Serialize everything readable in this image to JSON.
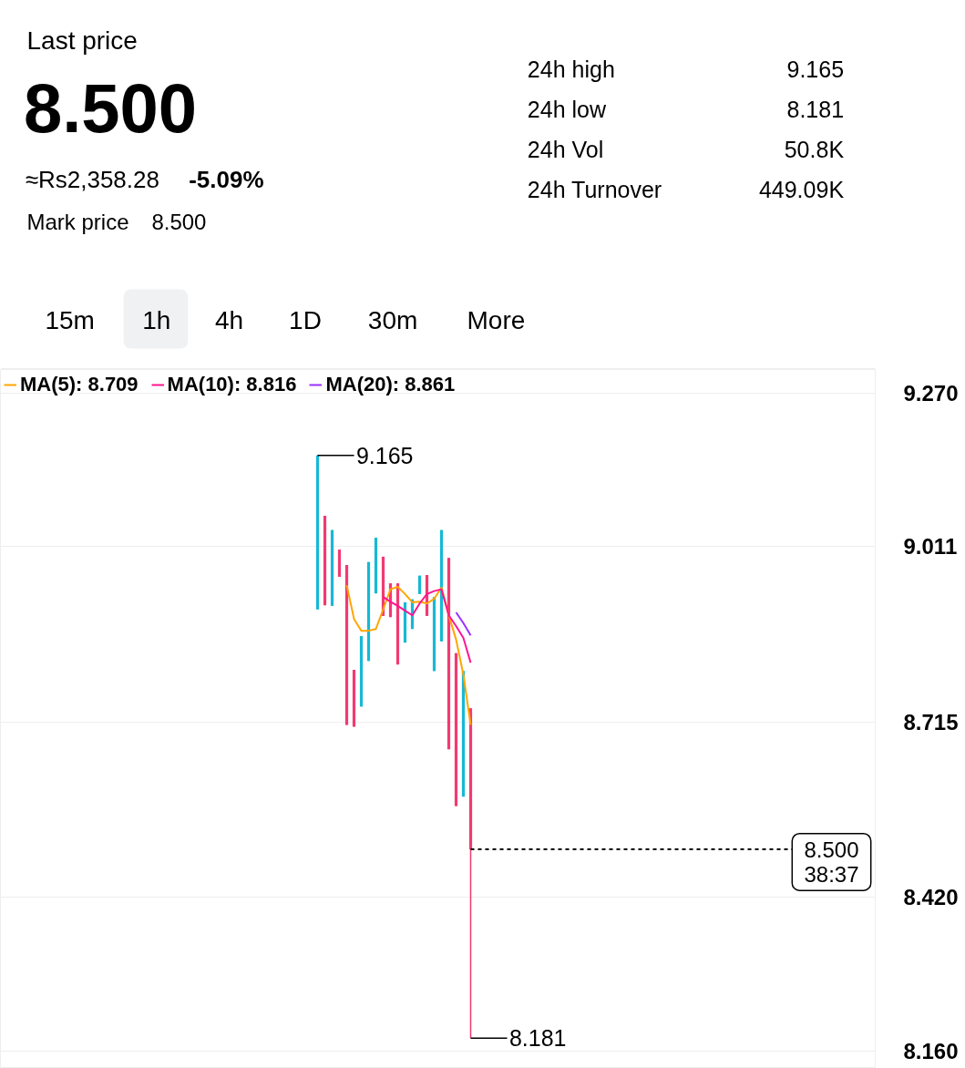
{
  "chart_data": {
    "type": "candlestick",
    "title": "Last price",
    "subtitle": "8.500",
    "categories": [
      null,
      null,
      null,
      null,
      null,
      null,
      null,
      null,
      null,
      null,
      null,
      null,
      null,
      null,
      null,
      null,
      null,
      null,
      null,
      null,
      null,
      null,
      null,
      null,
      null,
      null,
      null,
      null,
      null,
      null,
      null,
      null,
      null,
      null,
      null,
      null,
      null,
      null,
      null,
      null,
      null,
      null,
      null,
      null,
      null,
      null,
      null,
      null,
      null,
      null,
      null,
      null,
      null,
      null,
      null,
      null,
      null,
      null,
      null,
      null,
      null,
      null,
      null,
      null,
      null,
      null,
      null,
      null,
      null,
      null,
      null,
      null,
      null,
      null,
      null,
      null,
      null,
      null,
      null,
      null,
      null,
      null,
      null,
      null,
      null,
      null,
      null,
      null,
      null,
      null,
      null,
      null,
      null,
      null,
      null,
      null,
      null,
      null,
      null,
      null,
      null,
      null,
      null,
      null,
      null,
      null,
      null,
      null,
      null,
      null,
      null,
      null,
      null,
      null,
      null,
      null,
      null,
      null,
      null,
      null
    ],
    "ohlc": [
      null,
      null,
      null,
      null,
      null,
      null,
      null,
      null,
      null,
      null,
      null,
      null,
      null,
      null,
      null,
      null,
      null,
      null,
      null,
      null,
      null,
      null,
      null,
      null,
      null,
      null,
      null,
      null,
      null,
      null,
      null,
      null,
      null,
      null,
      null,
      null,
      null,
      null,
      null,
      null,
      null,
      null,
      null,
      [
        8.905,
        9.165,
        8.905,
        9.165
      ],
      [
        9.063,
        9.063,
        8.912,
        8.912
      ],
      [
        8.911,
        9.039,
        8.911,
        9.039
      ],
      [
        9.006,
        9.006,
        8.96,
        8.96
      ],
      [
        8.98,
        8.98,
        8.71,
        8.71
      ],
      [
        8.803,
        8.803,
        8.707,
        8.707
      ],
      [
        8.741,
        8.86,
        8.741,
        8.86
      ],
      [
        8.818,
        8.985,
        8.818,
        8.985
      ],
      [
        8.932,
        9.026,
        8.932,
        9.026
      ],
      [
        8.994,
        8.994,
        8.894,
        8.894
      ],
      [
        8.949,
        8.949,
        8.892,
        8.892
      ],
      [
        8.949,
        8.949,
        8.812,
        8.812
      ],
      [
        8.849,
        8.917,
        8.849,
        8.917
      ],
      [
        8.872,
        8.922,
        8.872,
        8.922
      ],
      [
        8.931,
        8.962,
        8.931,
        8.962
      ],
      [
        8.963,
        8.963,
        8.894,
        8.894
      ],
      [
        8.801,
        8.926,
        8.801,
        8.926
      ],
      [
        8.851,
        9.039,
        8.851,
        9.039
      ],
      [
        8.992,
        8.992,
        8.669,
        8.669
      ],
      [
        8.831,
        8.831,
        8.573,
        8.573
      ],
      [
        8.589,
        8.801,
        8.589,
        8.801
      ],
      [
        8.738,
        8.738,
        8.181,
        8.5
      ],
      null,
      null,
      null,
      null,
      null,
      null,
      null,
      null,
      null,
      null,
      null,
      null,
      null,
      null,
      null,
      null,
      null,
      null,
      null,
      null,
      null,
      null,
      null,
      null,
      null,
      null,
      null,
      null,
      null,
      null,
      null,
      null,
      null,
      null,
      null,
      null,
      null,
      null,
      null,
      null,
      null,
      null,
      null,
      null,
      null,
      null,
      null,
      null,
      null,
      null,
      null,
      null,
      null,
      null,
      null
    ],
    "colors": [
      null,
      null,
      null,
      null,
      null,
      null,
      null,
      null,
      null,
      null,
      null,
      null,
      null,
      null,
      null,
      null,
      null,
      null,
      null,
      null,
      null,
      null,
      null,
      null,
      null,
      null,
      null,
      null,
      null,
      null,
      null,
      null,
      null,
      null,
      null,
      null,
      null,
      null,
      null,
      null,
      null,
      null,
      null,
      "#16b9d4",
      "#f23a72",
      "#16b9d4",
      "#f23a72",
      "#f23a72",
      "#f23a72",
      "#16b9d4",
      "#16b9d4",
      "#16b9d4",
      "#f23a72",
      "#f23a72",
      "#f23a72",
      "#16b9d4",
      "#16b9d4",
      "#16b9d4",
      "#f23a72",
      "#16b9d4",
      "#16b9d4",
      "#f23a72",
      "#f23a72",
      "#16b9d4",
      "#f23a72",
      null,
      null,
      null,
      null,
      null,
      null,
      null,
      null,
      null,
      null,
      null,
      null,
      null,
      null,
      null,
      null,
      null,
      null,
      null,
      null,
      null,
      null,
      null,
      null,
      null,
      null,
      null,
      null,
      null,
      null,
      null,
      null,
      null,
      null,
      null,
      null,
      null,
      null,
      null,
      null,
      null,
      null,
      null,
      null,
      null,
      null,
      null,
      null,
      null,
      null,
      null,
      null,
      null,
      null,
      null
    ],
    "series": [
      {
        "name": "MA(5): 8.709",
        "type": "line",
        "color": "#ffa500",
        "values": [
          null,
          null,
          null,
          null,
          null,
          null,
          null,
          null,
          null,
          null,
          null,
          null,
          null,
          null,
          null,
          null,
          null,
          null,
          null,
          null,
          null,
          null,
          null,
          null,
          null,
          null,
          null,
          null,
          null,
          null,
          null,
          null,
          null,
          null,
          null,
          null,
          null,
          null,
          null,
          null,
          null,
          null,
          null,
          null,
          null,
          null,
          null,
          8.946,
          8.889,
          8.869,
          8.869,
          8.872,
          8.905,
          8.939,
          8.943,
          8.931,
          8.917,
          8.918,
          8.915,
          8.923,
          8.942,
          8.895,
          8.854,
          8.795,
          8.71,
          null,
          null,
          null,
          null,
          null,
          null,
          null,
          null,
          null,
          null,
          null,
          null,
          null,
          null,
          null,
          null,
          null,
          null,
          null,
          null,
          null,
          null,
          null,
          null,
          null,
          null,
          null,
          null,
          null,
          null,
          null,
          null,
          null,
          null,
          null,
          null,
          null,
          null,
          null,
          null,
          null,
          null,
          null,
          null,
          null,
          null,
          null,
          null,
          null,
          null,
          null,
          null,
          null,
          null,
          null
        ]
      },
      {
        "name": "MA(10): 8.816",
        "type": "line",
        "color": "#ff1493",
        "values": [
          null,
          null,
          null,
          null,
          null,
          null,
          null,
          null,
          null,
          null,
          null,
          null,
          null,
          null,
          null,
          null,
          null,
          null,
          null,
          null,
          null,
          null,
          null,
          null,
          null,
          null,
          null,
          null,
          null,
          null,
          null,
          null,
          null,
          null,
          null,
          null,
          null,
          null,
          null,
          null,
          null,
          null,
          null,
          null,
          null,
          null,
          null,
          null,
          null,
          null,
          null,
          null,
          8.926,
          8.918,
          8.911,
          8.903,
          8.895,
          8.915,
          8.931,
          8.936,
          8.939,
          8.895,
          8.877,
          8.857,
          8.815,
          null,
          null,
          null,
          null,
          null,
          null,
          null,
          null,
          null,
          null,
          null,
          null,
          null,
          null,
          null,
          null,
          null,
          null,
          null,
          null,
          null,
          null,
          null,
          null,
          null,
          null,
          null,
          null,
          null,
          null,
          null,
          null,
          null,
          null,
          null,
          null,
          null,
          null,
          null,
          null,
          null,
          null,
          null,
          null,
          null,
          null,
          null,
          null,
          null,
          null,
          null,
          null,
          null,
          null,
          null
        ]
      },
      {
        "name": "MA(20): 8.861",
        "type": "line",
        "color": "#9b30ff",
        "values": [
          null,
          null,
          null,
          null,
          null,
          null,
          null,
          null,
          null,
          null,
          null,
          null,
          null,
          null,
          null,
          null,
          null,
          null,
          null,
          null,
          null,
          null,
          null,
          null,
          null,
          null,
          null,
          null,
          null,
          null,
          null,
          null,
          null,
          null,
          null,
          null,
          null,
          null,
          null,
          null,
          null,
          null,
          null,
          null,
          null,
          null,
          null,
          null,
          null,
          null,
          null,
          null,
          null,
          null,
          null,
          null,
          null,
          null,
          null,
          null,
          null,
          null,
          8.9,
          8.882,
          8.861,
          null,
          null,
          null,
          null,
          null,
          null,
          null,
          null,
          null,
          null,
          null,
          null,
          null,
          null,
          null,
          null,
          null,
          null,
          null,
          null,
          null,
          null,
          null,
          null,
          null,
          null,
          null,
          null,
          null,
          null,
          null,
          null,
          null,
          null,
          null,
          null,
          null,
          null,
          null,
          null,
          null,
          null,
          null,
          null,
          null,
          null,
          null,
          null,
          null,
          null,
          null,
          null,
          null,
          null,
          null
        ]
      }
    ],
    "ylim": [
      8.13,
      9.31
    ],
    "yticks": [
      {
        "value": 9.27,
        "label": "9.270"
      },
      {
        "value": 9.011,
        "label": "9.011"
      },
      {
        "value": 8.715,
        "label": "8.715"
      },
      {
        "value": 8.42,
        "label": "8.420"
      },
      {
        "value": 8.16,
        "label": "8.160"
      }
    ],
    "tick_labels": "y",
    "grid": "y",
    "legend": "top left",
    "ref_lines": [
      {
        "axis": "y",
        "value": 8.5,
        "label": "8.500\n38:37",
        "line_style": "dashed",
        "color": "#000000"
      }
    ],
    "annotations": [
      "≈Rs2,358.28",
      "-5.09%",
      "Mark price",
      "8.500",
      "24h high",
      "9.165",
      "24h low",
      "8.181",
      "24h Vol",
      "50.8K",
      "24h Turnover",
      "449.09K",
      "15m",
      "1h",
      "4h",
      "1D",
      "30m",
      "More",
      "9.165",
      "8.181"
    ]
  }
}
